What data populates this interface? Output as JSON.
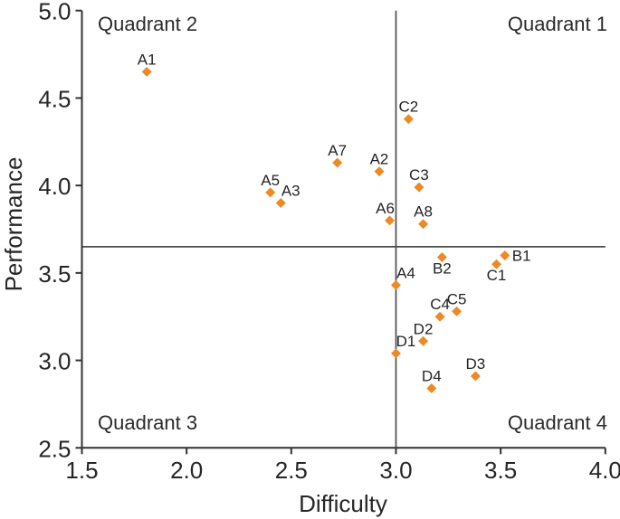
{
  "chart_data": {
    "type": "scatter",
    "title": "",
    "xlabel": "Difficulty",
    "ylabel": "Performance",
    "xlim": [
      1.5,
      4.0
    ],
    "ylim": [
      2.5,
      5.0
    ],
    "xticks": [
      1.5,
      2.0,
      2.5,
      3.0,
      3.5,
      4.0
    ],
    "yticks": [
      2.5,
      3.0,
      3.5,
      4.0,
      4.5,
      5.0
    ],
    "tick_decimals": 1,
    "grid": false,
    "legend": "none",
    "axis_color": "#333333",
    "reference_lines": {
      "vertical_x": 3.0,
      "horizontal_y": 3.65,
      "color": "#4d4d4d"
    },
    "quadrant_labels": [
      {
        "text": "Quadrant 1",
        "position": "top-right"
      },
      {
        "text": "Quadrant 2",
        "position": "top-left"
      },
      {
        "text": "Quadrant 3",
        "position": "bottom-left"
      },
      {
        "text": "Quadrant 4",
        "position": "bottom-right"
      }
    ],
    "marker": {
      "shape": "diamond",
      "color": "#ED8A24",
      "size": 11
    },
    "points": [
      {
        "label": "A1",
        "x": 1.81,
        "y": 4.65,
        "label_pos": "above"
      },
      {
        "label": "A2",
        "x": 2.92,
        "y": 4.08,
        "label_pos": "above"
      },
      {
        "label": "A3",
        "x": 2.45,
        "y": 3.9,
        "label_pos": "above-right"
      },
      {
        "label": "A4",
        "x": 3.0,
        "y": 3.43,
        "label_pos": "above-right"
      },
      {
        "label": "A5",
        "x": 2.4,
        "y": 3.96,
        "label_pos": "above"
      },
      {
        "label": "A6",
        "x": 2.97,
        "y": 3.8,
        "label_pos": "above-left"
      },
      {
        "label": "A7",
        "x": 2.72,
        "y": 4.13,
        "label_pos": "above"
      },
      {
        "label": "A8",
        "x": 3.13,
        "y": 3.78,
        "label_pos": "above"
      },
      {
        "label": "B1",
        "x": 3.52,
        "y": 3.6,
        "label_pos": "right"
      },
      {
        "label": "B2",
        "x": 3.22,
        "y": 3.59,
        "label_pos": "below"
      },
      {
        "label": "C1",
        "x": 3.48,
        "y": 3.55,
        "label_pos": "below"
      },
      {
        "label": "C2",
        "x": 3.06,
        "y": 4.38,
        "label_pos": "above"
      },
      {
        "label": "C3",
        "x": 3.11,
        "y": 3.99,
        "label_pos": "above"
      },
      {
        "label": "C4",
        "x": 3.21,
        "y": 3.25,
        "label_pos": "above"
      },
      {
        "label": "C5",
        "x": 3.29,
        "y": 3.28,
        "label_pos": "above"
      },
      {
        "label": "D1",
        "x": 3.0,
        "y": 3.04,
        "label_pos": "above-right"
      },
      {
        "label": "D2",
        "x": 3.13,
        "y": 3.11,
        "label_pos": "above"
      },
      {
        "label": "D3",
        "x": 3.38,
        "y": 2.91,
        "label_pos": "above"
      },
      {
        "label": "D4",
        "x": 3.17,
        "y": 2.84,
        "label_pos": "above"
      }
    ]
  }
}
